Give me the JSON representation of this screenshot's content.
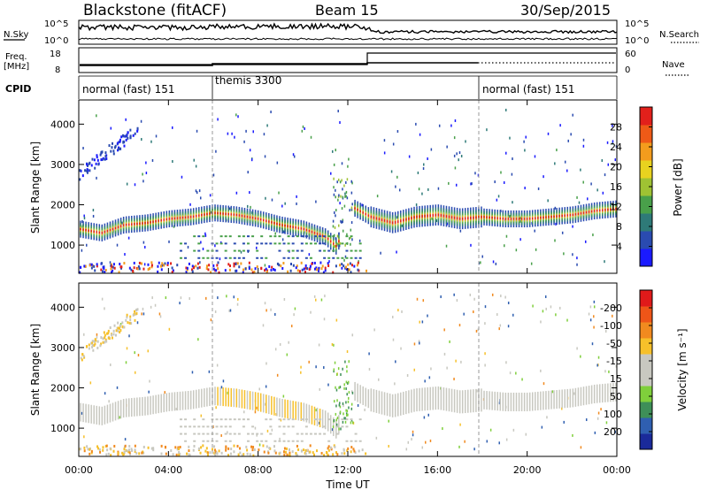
{
  "header": {
    "title": "Blackstone (fitACF)",
    "beam": "Beam 15",
    "date": "30/Sep/2015"
  },
  "left_labels": {
    "nsky": "N.Sky",
    "freq_line1": "Freq.",
    "freq_line2": "[MHz]",
    "cpid": "CPID"
  },
  "right_labels": {
    "nsearch": "N.Search",
    "nave": "Nave"
  },
  "noise_panel": {
    "ticks_left": [
      "10^5",
      "10^0"
    ],
    "ticks_right": [
      "10^5",
      "10^0"
    ]
  },
  "freq_panel": {
    "ticks_left": [
      "18",
      "8"
    ],
    "ticks_right": [
      "60",
      "0"
    ]
  },
  "cpid_segments": [
    {
      "label": "normal (fast) 151",
      "start_h": 0,
      "end_h": 6
    },
    {
      "label": "themis 3300",
      "start_h": 6,
      "end_h": 18
    },
    {
      "label": "normal (fast) 151",
      "start_h": 18,
      "end_h": 24
    }
  ],
  "x_axis": {
    "label": "Time UT",
    "range_h": [
      0,
      24
    ],
    "ticks": [
      "00:00",
      "04:00",
      "08:00",
      "12:00",
      "16:00",
      "20:00",
      "00:00"
    ]
  },
  "chart_data": [
    {
      "type": "heatmap",
      "title": "Power",
      "ylabel": "Slant Range [km]",
      "ylim": [
        300,
        4600
      ],
      "yticks": [
        "1000",
        "2000",
        "3000",
        "4000"
      ],
      "colorbar_label": "Power [dB]",
      "colorbar_ticks": [
        "4",
        "8",
        "12",
        "16",
        "20",
        "24",
        "28"
      ],
      "colorbar_colors": [
        "#1a1aff",
        "#2a4bb0",
        "#2e7a78",
        "#49a04a",
        "#9fc233",
        "#e8d21f",
        "#f39c1d",
        "#ee5a17",
        "#e2201b"
      ],
      "bands": [
        {
          "x": [
            0,
            1,
            2,
            3,
            4,
            5,
            6,
            7,
            8,
            9,
            10,
            11,
            11.5,
            12,
            13,
            14,
            15,
            16,
            17,
            18,
            19,
            20,
            21,
            22,
            23,
            24
          ],
          "y": [
            1400,
            1300,
            1500,
            1550,
            1650,
            1700,
            1800,
            1750,
            1650,
            1500,
            1400,
            1200,
            950,
            2000,
            1700,
            1550,
            1700,
            1750,
            1650,
            1700,
            1650,
            1650,
            1700,
            1750,
            1850,
            1900
          ]
        }
      ]
    },
    {
      "type": "heatmap",
      "title": "Velocity",
      "ylabel": "Slant Range [km]",
      "ylim": [
        300,
        4600
      ],
      "yticks": [
        "1000",
        "2000",
        "3000",
        "4000"
      ],
      "colorbar_label": "Velocity [m s⁻¹]",
      "colorbar_ticks": [
        "200",
        "100",
        "50",
        "15",
        "-15",
        "-50",
        "-100",
        "-200"
      ],
      "colorbar_colors": [
        "#1a2a9a",
        "#2f5fb0",
        "#3e8f58",
        "#7fcf3b",
        "#c8c8c0",
        "#c8c8c0",
        "#f6c02a",
        "#f18a1f",
        "#ee5518",
        "#e01a1a"
      ]
    }
  ]
}
